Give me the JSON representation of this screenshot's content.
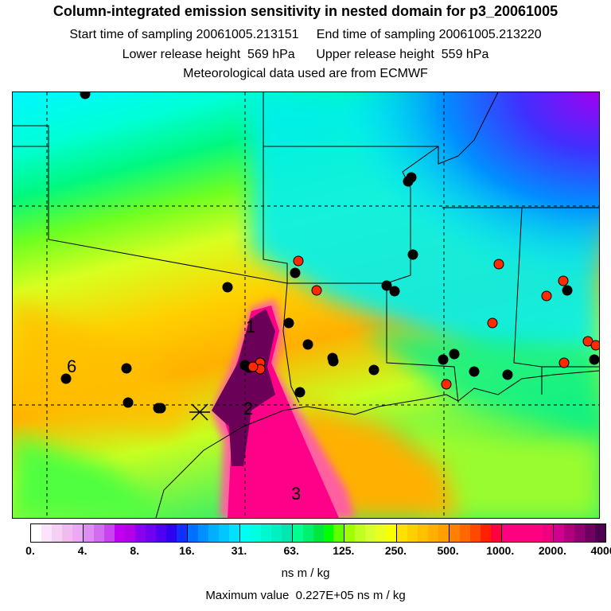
{
  "header": {
    "title": "Column-integrated emission sensitivity in nested domain for p3_20061005",
    "line2": "Start time of sampling 20061005.213151     End time of sampling 20061005.213220",
    "line3": "Lower release height  569 hPa      Upper release height  559 hPa",
    "line4": "Meteorological data used are from ECMWF"
  },
  "map": {
    "labels": [
      "1",
      "2",
      "3",
      "6"
    ],
    "release_marker": "x-cross-icon",
    "marker_colors": {
      "station": "#000000",
      "red_station": "#ff2a00"
    }
  },
  "colorbar": {
    "ticks": [
      "0.",
      "4.",
      "8.",
      "16.",
      "31.",
      "63.",
      "125.",
      "250.",
      "500.",
      "1000.",
      "2000.",
      "4000."
    ],
    "segments": [
      [
        "#ffffff",
        "#fbe4fb",
        "#f5d0f5",
        "#f0bcf0",
        "#eaa8f5"
      ],
      [
        "#e08cf5",
        "#d46cf0",
        "#c844f0",
        "#c000f0",
        "#b400e8"
      ],
      [
        "#8c00f0",
        "#7000f0",
        "#5000f0",
        "#3000f0",
        "#1030ff"
      ],
      [
        "#0070ff",
        "#0090ff",
        "#00b0ff",
        "#00c8ff",
        "#00e0ff"
      ],
      [
        "#00fff0",
        "#00ffe0",
        "#00f8d0",
        "#00f0c0",
        "#00e8b0"
      ],
      [
        "#00ff90",
        "#00f070",
        "#00e840",
        "#00ff00",
        "#60ff00"
      ],
      [
        "#a0ff00",
        "#c0ff20",
        "#d8ff30",
        "#e8ff20",
        "#f8ff00"
      ],
      [
        "#ffe000",
        "#ffd000",
        "#ffc000",
        "#ffb000",
        "#ffa000"
      ],
      [
        "#ff8000",
        "#ff6800",
        "#ff4800",
        "#ff2000",
        "#ff0040"
      ],
      [
        "#ff0080",
        "#ff0080",
        "#ff0080",
        "#ff0080",
        "#f00080"
      ],
      [
        "#d00090",
        "#b00080",
        "#900070",
        "#700060",
        "#500050"
      ]
    ],
    "units": "ns m / kg",
    "max_value": "Maximum value  0.227E+05 ns m / kg"
  }
}
